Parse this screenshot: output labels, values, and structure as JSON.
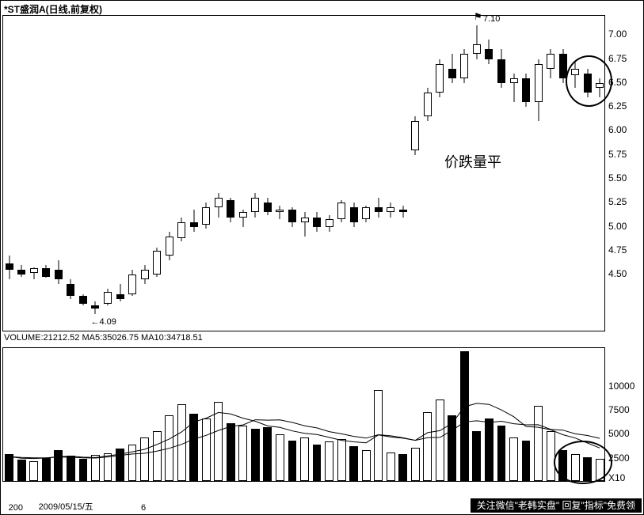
{
  "title": "*ST盛润A(日线,前复权)",
  "annotation": "价跌量平",
  "price_chart": {
    "type": "candlestick",
    "ylim": [
      3.9,
      7.2
    ],
    "yticks": [
      4.5,
      4.75,
      5.0,
      5.25,
      5.5,
      5.75,
      6.0,
      6.25,
      6.5,
      6.75,
      7.0
    ],
    "ytick_labels": [
      "4.50",
      "4.75",
      "5.00",
      "5.25",
      "5.50",
      "5.75",
      "6.00",
      "6.25",
      "6.50",
      "6.75",
      "7.00"
    ],
    "candle_width": 10,
    "candle_gap": 5,
    "colors": {
      "up_fill": "#ffffff",
      "down_fill": "#000000",
      "border": "#000000",
      "wick": "#000000"
    },
    "low_marker": {
      "index": 7,
      "value": 4.09,
      "label": "4.09"
    },
    "high_marker": {
      "index": 38,
      "value": 7.1,
      "label": "7.10"
    },
    "circle_annotation": {
      "index_from": 46,
      "index_to": 48
    },
    "candles": [
      {
        "o": 4.62,
        "h": 4.7,
        "l": 4.45,
        "c": 4.55
      },
      {
        "o": 4.55,
        "h": 4.6,
        "l": 4.48,
        "c": 4.5
      },
      {
        "o": 4.52,
        "h": 4.58,
        "l": 4.45,
        "c": 4.57
      },
      {
        "o": 4.57,
        "h": 4.6,
        "l": 4.47,
        "c": 4.48
      },
      {
        "o": 4.55,
        "h": 4.65,
        "l": 4.4,
        "c": 4.45
      },
      {
        "o": 4.4,
        "h": 4.45,
        "l": 4.25,
        "c": 4.28
      },
      {
        "o": 4.28,
        "h": 4.3,
        "l": 4.18,
        "c": 4.2
      },
      {
        "o": 4.18,
        "h": 4.22,
        "l": 4.09,
        "c": 4.15
      },
      {
        "o": 4.2,
        "h": 4.35,
        "l": 4.18,
        "c": 4.32
      },
      {
        "o": 4.3,
        "h": 4.4,
        "l": 4.22,
        "c": 4.25
      },
      {
        "o": 4.3,
        "h": 4.55,
        "l": 4.28,
        "c": 4.5
      },
      {
        "o": 4.45,
        "h": 4.6,
        "l": 4.4,
        "c": 4.55
      },
      {
        "o": 4.5,
        "h": 4.78,
        "l": 4.48,
        "c": 4.75
      },
      {
        "o": 4.7,
        "h": 4.95,
        "l": 4.65,
        "c": 4.9
      },
      {
        "o": 4.88,
        "h": 5.1,
        "l": 4.85,
        "c": 5.05
      },
      {
        "o": 5.05,
        "h": 5.18,
        "l": 4.95,
        "c": 5.0
      },
      {
        "o": 5.02,
        "h": 5.25,
        "l": 4.98,
        "c": 5.2
      },
      {
        "o": 5.2,
        "h": 5.35,
        "l": 5.1,
        "c": 5.3
      },
      {
        "o": 5.28,
        "h": 5.3,
        "l": 5.05,
        "c": 5.1
      },
      {
        "o": 5.1,
        "h": 5.18,
        "l": 5.0,
        "c": 5.15
      },
      {
        "o": 5.15,
        "h": 5.35,
        "l": 5.1,
        "c": 5.3
      },
      {
        "o": 5.25,
        "h": 5.3,
        "l": 5.12,
        "c": 5.15
      },
      {
        "o": 5.15,
        "h": 5.22,
        "l": 5.08,
        "c": 5.18
      },
      {
        "o": 5.18,
        "h": 5.2,
        "l": 5.0,
        "c": 5.05
      },
      {
        "o": 5.05,
        "h": 5.15,
        "l": 4.9,
        "c": 5.1
      },
      {
        "o": 5.1,
        "h": 5.15,
        "l": 4.95,
        "c": 5.0
      },
      {
        "o": 5.0,
        "h": 5.12,
        "l": 4.95,
        "c": 5.08
      },
      {
        "o": 5.08,
        "h": 5.28,
        "l": 5.05,
        "c": 5.25
      },
      {
        "o": 5.2,
        "h": 5.25,
        "l": 5.0,
        "c": 5.05
      },
      {
        "o": 5.08,
        "h": 5.22,
        "l": 5.05,
        "c": 5.2
      },
      {
        "o": 5.2,
        "h": 5.3,
        "l": 5.1,
        "c": 5.15
      },
      {
        "o": 5.15,
        "h": 5.25,
        "l": 5.1,
        "c": 5.2
      },
      {
        "o": 5.18,
        "h": 5.22,
        "l": 5.1,
        "c": 5.15
      },
      {
        "o": 5.8,
        "h": 6.15,
        "l": 5.75,
        "c": 6.1
      },
      {
        "o": 6.15,
        "h": 6.45,
        "l": 6.1,
        "c": 6.4
      },
      {
        "o": 6.4,
        "h": 6.75,
        "l": 6.35,
        "c": 6.7
      },
      {
        "o": 6.65,
        "h": 6.8,
        "l": 6.5,
        "c": 6.55
      },
      {
        "o": 6.55,
        "h": 6.85,
        "l": 6.5,
        "c": 6.8
      },
      {
        "o": 6.8,
        "h": 7.1,
        "l": 6.75,
        "c": 6.9
      },
      {
        "o": 6.85,
        "h": 6.95,
        "l": 6.7,
        "c": 6.75
      },
      {
        "o": 6.75,
        "h": 6.85,
        "l": 6.45,
        "c": 6.5
      },
      {
        "o": 6.5,
        "h": 6.6,
        "l": 6.3,
        "c": 6.55
      },
      {
        "o": 6.55,
        "h": 6.6,
        "l": 6.25,
        "c": 6.3
      },
      {
        "o": 6.3,
        "h": 6.75,
        "l": 6.1,
        "c": 6.7
      },
      {
        "o": 6.65,
        "h": 6.85,
        "l": 6.55,
        "c": 6.8
      },
      {
        "o": 6.8,
        "h": 6.85,
        "l": 6.5,
        "c": 6.55
      },
      {
        "o": 6.58,
        "h": 6.72,
        "l": 6.45,
        "c": 6.65
      },
      {
        "o": 6.6,
        "h": 6.65,
        "l": 6.35,
        "c": 6.4
      },
      {
        "o": 6.45,
        "h": 6.55,
        "l": 6.35,
        "c": 6.5
      }
    ]
  },
  "volume_chart": {
    "type": "bar",
    "label_line": "VOLUME:21212.52 MA5:35026.75 MA10:34718.51",
    "ylim": [
      0,
      14000
    ],
    "yticks": [
      2500,
      5000,
      7500,
      10000
    ],
    "ytick_labels": [
      "2500",
      "5000",
      "7500",
      "10000"
    ],
    "x10_label": "X10",
    "colors": {
      "up_fill": "#ffffff",
      "down_fill": "#000000",
      "border": "#000000"
    },
    "bars": [
      {
        "v": 2800,
        "dir": "down"
      },
      {
        "v": 2200,
        "dir": "down"
      },
      {
        "v": 2100,
        "dir": "up"
      },
      {
        "v": 2400,
        "dir": "down"
      },
      {
        "v": 3200,
        "dir": "down"
      },
      {
        "v": 2600,
        "dir": "down"
      },
      {
        "v": 2300,
        "dir": "down"
      },
      {
        "v": 2700,
        "dir": "up"
      },
      {
        "v": 2900,
        "dir": "up"
      },
      {
        "v": 3400,
        "dir": "down"
      },
      {
        "v": 3800,
        "dir": "up"
      },
      {
        "v": 4500,
        "dir": "up"
      },
      {
        "v": 5200,
        "dir": "up"
      },
      {
        "v": 6800,
        "dir": "up"
      },
      {
        "v": 8000,
        "dir": "up"
      },
      {
        "v": 7000,
        "dir": "down"
      },
      {
        "v": 6500,
        "dir": "up"
      },
      {
        "v": 8200,
        "dir": "up"
      },
      {
        "v": 6000,
        "dir": "down"
      },
      {
        "v": 5800,
        "dir": "up"
      },
      {
        "v": 5400,
        "dir": "down"
      },
      {
        "v": 5600,
        "dir": "down"
      },
      {
        "v": 4900,
        "dir": "up"
      },
      {
        "v": 4200,
        "dir": "down"
      },
      {
        "v": 4500,
        "dir": "up"
      },
      {
        "v": 3800,
        "dir": "down"
      },
      {
        "v": 4100,
        "dir": "up"
      },
      {
        "v": 4400,
        "dir": "up"
      },
      {
        "v": 3600,
        "dir": "down"
      },
      {
        "v": 3200,
        "dir": "up"
      },
      {
        "v": 9500,
        "dir": "up"
      },
      {
        "v": 3000,
        "dir": "up"
      },
      {
        "v": 2800,
        "dir": "down"
      },
      {
        "v": 3500,
        "dir": "up"
      },
      {
        "v": 7200,
        "dir": "up"
      },
      {
        "v": 8500,
        "dir": "up"
      },
      {
        "v": 6800,
        "dir": "down"
      },
      {
        "v": 13500,
        "dir": "down"
      },
      {
        "v": 5200,
        "dir": "down"
      },
      {
        "v": 6500,
        "dir": "down"
      },
      {
        "v": 5800,
        "dir": "down"
      },
      {
        "v": 4500,
        "dir": "up"
      },
      {
        "v": 4200,
        "dir": "down"
      },
      {
        "v": 7800,
        "dir": "up"
      },
      {
        "v": 5200,
        "dir": "up"
      },
      {
        "v": 3200,
        "dir": "down"
      },
      {
        "v": 2800,
        "dir": "up"
      },
      {
        "v": 2500,
        "dir": "down"
      },
      {
        "v": 2300,
        "dir": "up"
      }
    ],
    "ma5": [
      2700,
      2540,
      2500,
      2560,
      2700,
      2740,
      2640,
      2600,
      2780,
      2960,
      3200,
      3460,
      3960,
      4540,
      5260,
      6300,
      6700,
      7300,
      7140,
      6700,
      6380,
      5900,
      5740,
      5380,
      5120,
      5000,
      4700,
      4400,
      4240,
      4140,
      4960,
      4740,
      4620,
      4400,
      5200,
      5400,
      6180,
      7900,
      8240,
      8140,
      7560,
      6860,
      5840,
      5760,
      5500,
      4980,
      4640,
      4120,
      3600
    ],
    "ma10": [
      2700,
      2620,
      2580,
      2580,
      2640,
      2640,
      2570,
      2550,
      2670,
      2830,
      2970,
      3050,
      3280,
      3570,
      3980,
      4520,
      4920,
      5430,
      5850,
      6000,
      6540,
      6500,
      6520,
      6260,
      5910,
      5690,
      5300,
      5070,
      4810,
      4630,
      4980,
      4870,
      4660,
      4400,
      4670,
      4700,
      5440,
      6320,
      6430,
      6270,
      6380,
      6130,
      6010,
      6020,
      5540,
      5460,
      5070,
      4900,
      4600
    ]
  },
  "x_axis": {
    "ticks": [
      {
        "pos": 0.01,
        "label": "200"
      },
      {
        "pos": 0.06,
        "label": "2009/05/15/五"
      },
      {
        "pos": 0.23,
        "label": "6"
      }
    ]
  },
  "bottom_banner": "关注微信\"老韩实盘\" 回复\"指标\"免费领"
}
